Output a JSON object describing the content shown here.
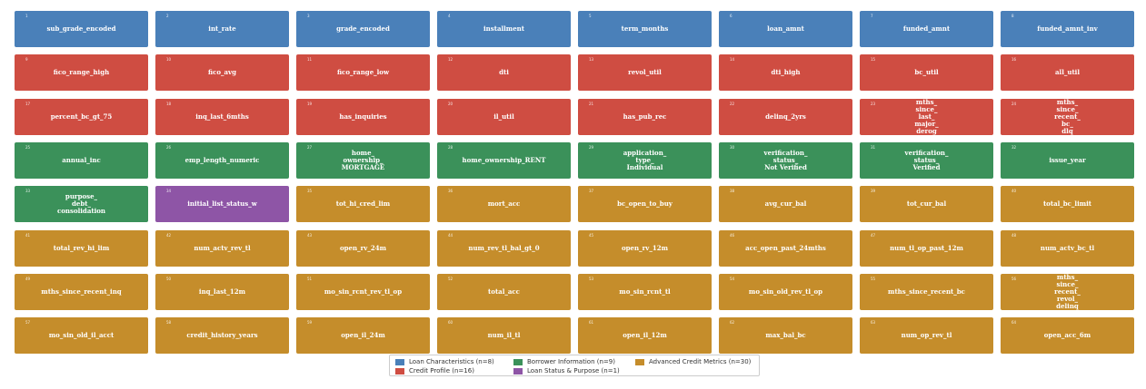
{
  "colors": {
    "loan": "#4a80b9",
    "credit": "#cf4d42",
    "borrower": "#3b915a",
    "status": "#8e55a6",
    "advanced": "#c58d2b"
  },
  "columns": 8,
  "tiles": [
    {
      "num": "1",
      "label": "sub_grade_encoded",
      "group": "loan"
    },
    {
      "num": "2",
      "label": "int_rate",
      "group": "loan"
    },
    {
      "num": "3",
      "label": "grade_encoded",
      "group": "loan"
    },
    {
      "num": "4",
      "label": "installment",
      "group": "loan"
    },
    {
      "num": "5",
      "label": "term_months",
      "group": "loan"
    },
    {
      "num": "6",
      "label": "loan_amnt",
      "group": "loan"
    },
    {
      "num": "7",
      "label": "funded_amnt",
      "group": "loan"
    },
    {
      "num": "8",
      "label": "funded_amnt_inv",
      "group": "loan"
    },
    {
      "num": "9",
      "label": "fico_range_high",
      "group": "credit"
    },
    {
      "num": "10",
      "label": "fico_avg",
      "group": "credit"
    },
    {
      "num": "11",
      "label": "fico_range_low",
      "group": "credit"
    },
    {
      "num": "12",
      "label": "dti",
      "group": "credit"
    },
    {
      "num": "13",
      "label": "revol_util",
      "group": "credit"
    },
    {
      "num": "14",
      "label": "dti_high",
      "group": "credit"
    },
    {
      "num": "15",
      "label": "bc_util",
      "group": "credit"
    },
    {
      "num": "16",
      "label": "all_util",
      "group": "credit"
    },
    {
      "num": "17",
      "label": "percent_bc_gt_75",
      "group": "credit"
    },
    {
      "num": "18",
      "label": "inq_last_6mths",
      "group": "credit"
    },
    {
      "num": "19",
      "label": "has_inquiries",
      "group": "credit"
    },
    {
      "num": "20",
      "label": "il_util",
      "group": "credit"
    },
    {
      "num": "21",
      "label": "has_pub_rec",
      "group": "credit"
    },
    {
      "num": "22",
      "label": "delinq_2yrs",
      "group": "credit"
    },
    {
      "num": "23",
      "label": "mths_\nsince_\nlast_\nmajor_\nderog",
      "group": "credit"
    },
    {
      "num": "24",
      "label": "mths_\nsince_\nrecent_\nbc_\ndlq",
      "group": "credit"
    },
    {
      "num": "25",
      "label": "annual_inc",
      "group": "borrower"
    },
    {
      "num": "26",
      "label": "emp_length_numeric",
      "group": "borrower"
    },
    {
      "num": "27",
      "label": "home_\nownership_\nMORTGAGE",
      "group": "borrower"
    },
    {
      "num": "28",
      "label": "home_ownership_RENT",
      "group": "borrower"
    },
    {
      "num": "29",
      "label": "application_\ntype_\nIndividual",
      "group": "borrower"
    },
    {
      "num": "30",
      "label": "verification_\nstatus_\nNot Verified",
      "group": "borrower"
    },
    {
      "num": "31",
      "label": "verification_\nstatus_\nVerified",
      "group": "borrower"
    },
    {
      "num": "32",
      "label": "issue_year",
      "group": "borrower"
    },
    {
      "num": "33",
      "label": "purpose_\ndebt_\nconsolidation",
      "group": "borrower"
    },
    {
      "num": "34",
      "label": "initial_list_status_w",
      "group": "status"
    },
    {
      "num": "35",
      "label": "tot_hi_cred_lim",
      "group": "advanced"
    },
    {
      "num": "36",
      "label": "mort_acc",
      "group": "advanced"
    },
    {
      "num": "37",
      "label": "bc_open_to_buy",
      "group": "advanced"
    },
    {
      "num": "38",
      "label": "avg_cur_bal",
      "group": "advanced"
    },
    {
      "num": "39",
      "label": "tot_cur_bal",
      "group": "advanced"
    },
    {
      "num": "40",
      "label": "total_bc_limit",
      "group": "advanced"
    },
    {
      "num": "41",
      "label": "total_rev_hi_lim",
      "group": "advanced"
    },
    {
      "num": "42",
      "label": "num_actv_rev_tl",
      "group": "advanced"
    },
    {
      "num": "43",
      "label": "open_rv_24m",
      "group": "advanced"
    },
    {
      "num": "44",
      "label": "num_rev_tl_bal_gt_0",
      "group": "advanced"
    },
    {
      "num": "45",
      "label": "open_rv_12m",
      "group": "advanced"
    },
    {
      "num": "46",
      "label": "acc_open_past_24mths",
      "group": "advanced"
    },
    {
      "num": "47",
      "label": "num_tl_op_past_12m",
      "group": "advanced"
    },
    {
      "num": "48",
      "label": "num_actv_bc_tl",
      "group": "advanced"
    },
    {
      "num": "49",
      "label": "mths_since_recent_inq",
      "group": "advanced"
    },
    {
      "num": "50",
      "label": "inq_last_12m",
      "group": "advanced"
    },
    {
      "num": "51",
      "label": "mo_sin_rcnt_rev_tl_op",
      "group": "advanced"
    },
    {
      "num": "52",
      "label": "total_acc",
      "group": "advanced"
    },
    {
      "num": "53",
      "label": "mo_sin_rcnt_tl",
      "group": "advanced"
    },
    {
      "num": "54",
      "label": "mo_sin_old_rev_tl_op",
      "group": "advanced"
    },
    {
      "num": "55",
      "label": "mths_since_recent_bc",
      "group": "advanced"
    },
    {
      "num": "56",
      "label": "mths_\nsince_\nrecent_\nrevol_\ndelinq",
      "group": "advanced"
    },
    {
      "num": "57",
      "label": "mo_sin_old_il_acct",
      "group": "advanced"
    },
    {
      "num": "58",
      "label": "credit_history_years",
      "group": "advanced"
    },
    {
      "num": "59",
      "label": "open_il_24m",
      "group": "advanced"
    },
    {
      "num": "60",
      "label": "num_il_tl",
      "group": "advanced"
    },
    {
      "num": "61",
      "label": "open_il_12m",
      "group": "advanced"
    },
    {
      "num": "62",
      "label": "max_bal_bc",
      "group": "advanced"
    },
    {
      "num": "63",
      "label": "num_op_rev_tl",
      "group": "advanced"
    },
    {
      "num": "64",
      "label": "open_acc_6m",
      "group": "advanced"
    }
  ],
  "legend": {
    "items": [
      {
        "label": "Loan Characteristics  (n=8)",
        "group": "loan"
      },
      {
        "label": "Credit Profile  (n=16)",
        "group": "credit"
      },
      {
        "label": "Borrower Information  (n=9)",
        "group": "borrower"
      },
      {
        "label": "Loan Status & Purpose  (n=1)",
        "group": "status"
      },
      {
        "label": "Advanced Credit Metrics  (n=30)",
        "group": "advanced"
      }
    ]
  }
}
